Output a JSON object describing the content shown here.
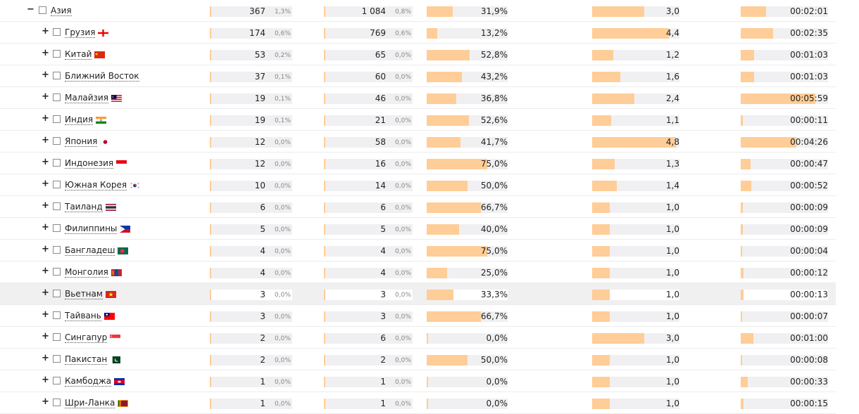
{
  "colors": {
    "bar_fill": "#ffcd97",
    "bar_track": "#f0f0f2",
    "row_highlight": "#f0f0f0"
  },
  "columns": {
    "visits_max": 367,
    "views_max": 1084,
    "depth_max": 5,
    "time_max_seconds": 420
  },
  "rows": [
    {
      "level": 0,
      "toggle": "−",
      "name": "Азия",
      "flag": "",
      "visits": "367",
      "visits_pct": "1,3%",
      "views": "1 084",
      "views_pct": "0,8%",
      "bounce": "31,9%",
      "bounce_val": 31.9,
      "depth": "3,0",
      "depth_val": 3.0,
      "time": "00:02:01",
      "time_sec": 121
    },
    {
      "level": 1,
      "toggle": "+",
      "name": "Грузия",
      "flag": "flag-georgia",
      "visits": "174",
      "visits_pct": "0,6%",
      "views": "769",
      "views_pct": "0,6%",
      "bounce": "13,2%",
      "bounce_val": 13.2,
      "depth": "4,4",
      "depth_val": 4.4,
      "time": "00:02:35",
      "time_sec": 155
    },
    {
      "level": 1,
      "toggle": "+",
      "name": "Китай",
      "flag": "flag-china",
      "visits": "53",
      "visits_pct": "0,2%",
      "views": "65",
      "views_pct": "0,0%",
      "bounce": "52,8%",
      "bounce_val": 52.8,
      "depth": "1,2",
      "depth_val": 1.2,
      "time": "00:01:03",
      "time_sec": 63
    },
    {
      "level": 1,
      "toggle": "+",
      "name": "Ближний Восток",
      "flag": "",
      "visits": "37",
      "visits_pct": "0,1%",
      "views": "60",
      "views_pct": "0,0%",
      "bounce": "43,2%",
      "bounce_val": 43.2,
      "depth": "1,6",
      "depth_val": 1.6,
      "time": "00:01:03",
      "time_sec": 63
    },
    {
      "level": 1,
      "toggle": "+",
      "name": "Малайзия",
      "flag": "flag-malaysia",
      "visits": "19",
      "visits_pct": "0,1%",
      "views": "46",
      "views_pct": "0,0%",
      "bounce": "36,8%",
      "bounce_val": 36.8,
      "depth": "2,4",
      "depth_val": 2.4,
      "time": "00:05:59",
      "time_sec": 359
    },
    {
      "level": 1,
      "toggle": "+",
      "name": "Индия",
      "flag": "flag-india",
      "visits": "19",
      "visits_pct": "0,1%",
      "views": "21",
      "views_pct": "0,0%",
      "bounce": "52,6%",
      "bounce_val": 52.6,
      "depth": "1,1",
      "depth_val": 1.1,
      "time": "00:00:11",
      "time_sec": 11
    },
    {
      "level": 1,
      "toggle": "+",
      "name": "Япония",
      "flag": "flag-japan",
      "visits": "12",
      "visits_pct": "0,0%",
      "views": "58",
      "views_pct": "0,0%",
      "bounce": "41,7%",
      "bounce_val": 41.7,
      "depth": "4,8",
      "depth_val": 4.8,
      "time": "00:04:26",
      "time_sec": 266
    },
    {
      "level": 1,
      "toggle": "+",
      "name": "Индонезия",
      "flag": "flag-indonesia",
      "visits": "12",
      "visits_pct": "0,0%",
      "views": "16",
      "views_pct": "0,0%",
      "bounce": "75,0%",
      "bounce_val": 75.0,
      "depth": "1,3",
      "depth_val": 1.3,
      "time": "00:00:47",
      "time_sec": 47
    },
    {
      "level": 1,
      "toggle": "+",
      "name": "Южная Корея",
      "flag": "flag-korea",
      "visits": "10",
      "visits_pct": "0,0%",
      "views": "14",
      "views_pct": "0,0%",
      "bounce": "50,0%",
      "bounce_val": 50.0,
      "depth": "1,4",
      "depth_val": 1.4,
      "time": "00:00:52",
      "time_sec": 52
    },
    {
      "level": 1,
      "toggle": "+",
      "name": "Таиланд",
      "flag": "flag-thailand",
      "visits": "6",
      "visits_pct": "0,0%",
      "views": "6",
      "views_pct": "0,0%",
      "bounce": "66,7%",
      "bounce_val": 66.7,
      "depth": "1,0",
      "depth_val": 1.0,
      "time": "00:00:09",
      "time_sec": 9
    },
    {
      "level": 1,
      "toggle": "+",
      "name": "Филиппины",
      "flag": "flag-philippines",
      "visits": "5",
      "visits_pct": "0,0%",
      "views": "5",
      "views_pct": "0,0%",
      "bounce": "40,0%",
      "bounce_val": 40.0,
      "depth": "1,0",
      "depth_val": 1.0,
      "time": "00:00:09",
      "time_sec": 9
    },
    {
      "level": 1,
      "toggle": "+",
      "name": "Бангладеш",
      "flag": "flag-bangladesh",
      "visits": "4",
      "visits_pct": "0,0%",
      "views": "4",
      "views_pct": "0,0%",
      "bounce": "75,0%",
      "bounce_val": 75.0,
      "depth": "1,0",
      "depth_val": 1.0,
      "time": "00:00:04",
      "time_sec": 4
    },
    {
      "level": 1,
      "toggle": "+",
      "name": "Монголия",
      "flag": "flag-mongolia",
      "visits": "4",
      "visits_pct": "0,0%",
      "views": "4",
      "views_pct": "0,0%",
      "bounce": "25,0%",
      "bounce_val": 25.0,
      "depth": "1,0",
      "depth_val": 1.0,
      "time": "00:00:12",
      "time_sec": 12
    },
    {
      "level": 1,
      "toggle": "+",
      "name": "Вьетнам",
      "flag": "flag-vietnam",
      "visits": "3",
      "visits_pct": "0,0%",
      "views": "3",
      "views_pct": "0,0%",
      "bounce": "33,3%",
      "bounce_val": 33.3,
      "depth": "1,0",
      "depth_val": 1.0,
      "time": "00:00:13",
      "time_sec": 13,
      "highlight": true
    },
    {
      "level": 1,
      "toggle": "+",
      "name": "Тайвань",
      "flag": "flag-taiwan",
      "visits": "3",
      "visits_pct": "0,0%",
      "views": "3",
      "views_pct": "0,0%",
      "bounce": "66,7%",
      "bounce_val": 66.7,
      "depth": "1,0",
      "depth_val": 1.0,
      "time": "00:00:07",
      "time_sec": 7
    },
    {
      "level": 1,
      "toggle": "+",
      "name": "Сингапур",
      "flag": "flag-singapore",
      "visits": "2",
      "visits_pct": "0,0%",
      "views": "6",
      "views_pct": "0,0%",
      "bounce": "0,0%",
      "bounce_val": 0.0,
      "depth": "3,0",
      "depth_val": 3.0,
      "time": "00:01:00",
      "time_sec": 60
    },
    {
      "level": 1,
      "toggle": "+",
      "name": "Пакистан",
      "flag": "flag-pakistan",
      "visits": "2",
      "visits_pct": "0,0%",
      "views": "2",
      "views_pct": "0,0%",
      "bounce": "50,0%",
      "bounce_val": 50.0,
      "depth": "1,0",
      "depth_val": 1.0,
      "time": "00:00:08",
      "time_sec": 8
    },
    {
      "level": 1,
      "toggle": "+",
      "name": "Камбоджа",
      "flag": "flag-cambodia",
      "visits": "1",
      "visits_pct": "0,0%",
      "views": "1",
      "views_pct": "0,0%",
      "bounce": "0,0%",
      "bounce_val": 0.0,
      "depth": "1,0",
      "depth_val": 1.0,
      "time": "00:00:33",
      "time_sec": 33
    },
    {
      "level": 1,
      "toggle": "+",
      "name": "Шри-Ланка",
      "flag": "flag-srilanka",
      "visits": "1",
      "visits_pct": "0,0%",
      "views": "1",
      "views_pct": "0,0%",
      "bounce": "0,0%",
      "bounce_val": 0.0,
      "depth": "1,0",
      "depth_val": 1.0,
      "time": "00:00:15",
      "time_sec": 15
    }
  ]
}
